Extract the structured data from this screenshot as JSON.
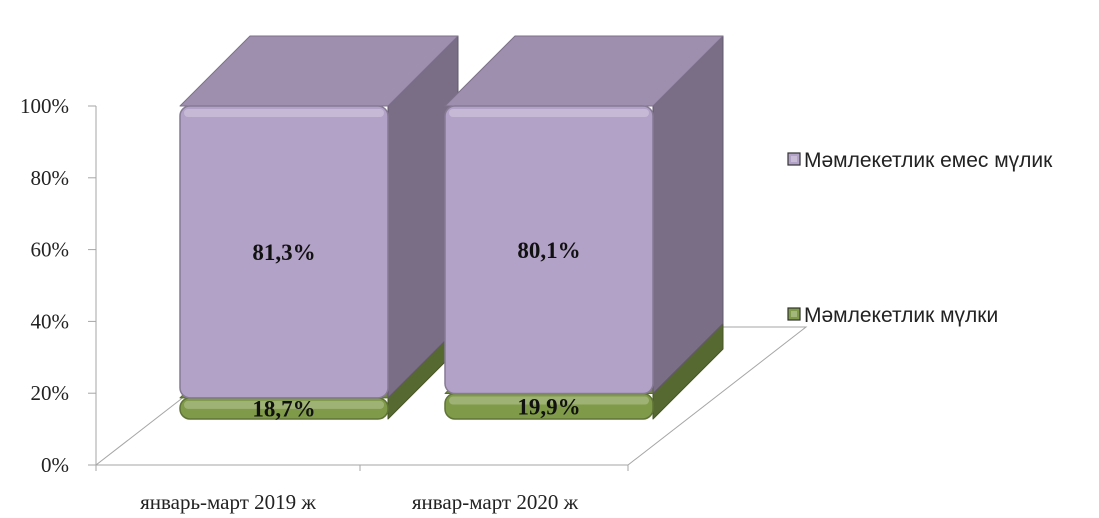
{
  "chart_data": {
    "type": "bar",
    "stacked": true,
    "percent_stacked": true,
    "three_d": true,
    "categories": [
      "январь-март 2019 ж",
      "январ-март 2020 ж"
    ],
    "series": [
      {
        "name": "Мәмлекетлик мүлки",
        "values": [
          18.7,
          19.9
        ],
        "labels": [
          "18,7%",
          "19,9%"
        ],
        "color": "#7f9a48"
      },
      {
        "name": "Мәмлекетлик емес мүлик",
        "values": [
          81.3,
          80.1
        ],
        "labels": [
          "81,3%",
          "80,1%"
        ],
        "color": "#b3a2c7"
      }
    ],
    "ylim": [
      0,
      100
    ],
    "yticks": [
      0,
      20,
      40,
      60,
      80,
      100
    ],
    "ytick_labels": [
      "0%",
      "20%",
      "40%",
      "60%",
      "80%",
      "100%"
    ],
    "legend_position": "right",
    "legend_order": [
      "Мәмлекетлик емес мүлик",
      "Мәмлекетлик мүлки"
    ],
    "grid": false
  }
}
